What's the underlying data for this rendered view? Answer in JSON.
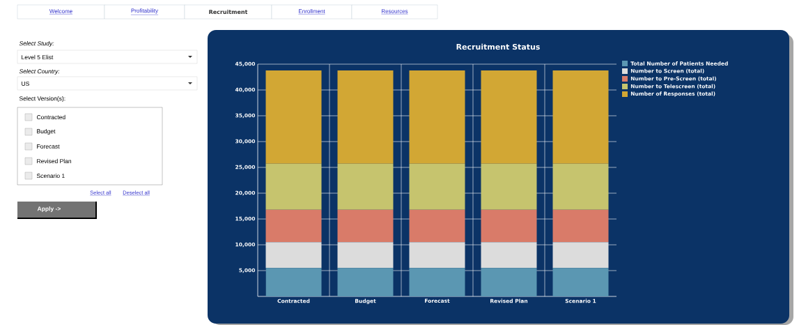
{
  "chart_data": {
    "type": "bar",
    "stacked": true,
    "title": "Recruitment Status",
    "categories": [
      "Contracted",
      "Budget",
      "Forecast",
      "Revised Plan",
      "Scenario 1"
    ],
    "series": [
      {
        "name": "Total Number of Patients Needed",
        "color": "#5b97b2",
        "values": [
          5500,
          5500,
          5500,
          5500,
          5500
        ]
      },
      {
        "name": "Number to Screen (total)",
        "color": "#dcdcdc",
        "values": [
          5000,
          5000,
          5000,
          5000,
          5000
        ]
      },
      {
        "name": "Number to Pre-Screen (total)",
        "color": "#d97b69",
        "values": [
          6300,
          6300,
          6300,
          6300,
          6300
        ]
      },
      {
        "name": "Number to Telescreen (total)",
        "color": "#c6c46e",
        "values": [
          8900,
          8900,
          8900,
          8900,
          8900
        ]
      },
      {
        "name": "Number of Responses (total)",
        "color": "#d2a734",
        "values": [
          18100,
          18100,
          18100,
          18100,
          18100
        ]
      }
    ],
    "ylim": [
      0,
      45000
    ],
    "yticks": [
      {
        "value": 5000,
        "label": "5,000"
      },
      {
        "value": 10000,
        "label": "10,000"
      },
      {
        "value": 15000,
        "label": "15,000"
      },
      {
        "value": 20000,
        "label": "20,000"
      },
      {
        "value": 25000,
        "label": "25,000"
      },
      {
        "value": 30000,
        "label": "30,000"
      },
      {
        "value": 35000,
        "label": "35,000"
      },
      {
        "value": 40000,
        "label": "40,000"
      },
      {
        "value": 45000,
        "label": "45,000"
      }
    ],
    "grid": true,
    "legend": "top right",
    "annotations": [
      "Welcome",
      "Profitability",
      "Recruitment",
      "Enrollment",
      "Resources",
      "Select Study:",
      "Level 5 Elist",
      "Select Country:",
      "US",
      "Select Version(s):",
      "Contracted",
      "Budget",
      "Forecast",
      "Revised Plan",
      "Scenario 1",
      "Select all",
      "Deselect all",
      "Apply ->"
    ]
  }
}
